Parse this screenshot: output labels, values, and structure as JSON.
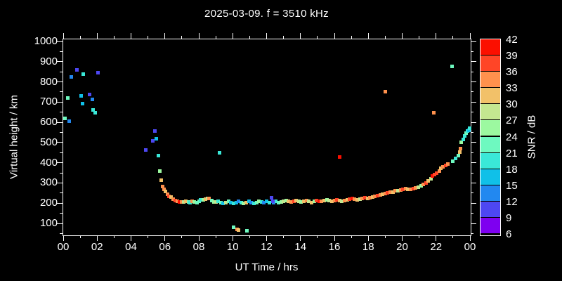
{
  "title": "2025-03-09. f = 3510 kHz",
  "axes": {
    "x": {
      "label": "UT Time / hrs",
      "tick_labels": [
        "00",
        "02",
        "04",
        "06",
        "08",
        "10",
        "12",
        "14",
        "16",
        "18",
        "20",
        "22",
        "00"
      ],
      "range": [
        0,
        24
      ],
      "minor_step_hours": 1
    },
    "y": {
      "label": "Virtual height / km",
      "tick_values": [
        100,
        200,
        300,
        400,
        500,
        600,
        700,
        800,
        900,
        1000
      ],
      "minor_step_km": 50,
      "range": [
        100,
        1000
      ]
    }
  },
  "colorbar": {
    "label": "SNR / dB",
    "tick_values": [
      6,
      9,
      12,
      15,
      18,
      21,
      24,
      27,
      30,
      33,
      36,
      39,
      42
    ],
    "min": 6,
    "max": 42,
    "step": 3,
    "colors": [
      "#7e00f0",
      "#4d47f2",
      "#2288f0",
      "#10c0e8",
      "#3ae8d8",
      "#6ef9c0",
      "#9cf9a0",
      "#c4e790",
      "#f2c169",
      "#ff914d",
      "#ff4527",
      "#fb0f00"
    ]
  },
  "background_color": "#000000",
  "text_color": "#ffffff",
  "chart_data": {
    "type": "scatter",
    "title": "2025-03-09. f = 3510 kHz",
    "xlabel": "UT Time / hrs",
    "ylabel": "Virtual height / km",
    "color_label": "SNR / dB",
    "xlim": [
      0,
      24
    ],
    "ylim": [
      100,
      1000
    ],
    "grid": false,
    "legend": "colorbar-right",
    "point_format": "[ut_hours, virtual_height_km, snr_db]",
    "points": [
      [
        0.12,
        621,
        22
      ],
      [
        0.29,
        722,
        22
      ],
      [
        0.37,
        607,
        13
      ],
      [
        0.46,
        826,
        13
      ],
      [
        0.79,
        858,
        10
      ],
      [
        1.04,
        732,
        16
      ],
      [
        1.12,
        694,
        16
      ],
      [
        1.17,
        837,
        19
      ],
      [
        1.54,
        739,
        10
      ],
      [
        1.7,
        715,
        13
      ],
      [
        1.78,
        660,
        19
      ],
      [
        1.87,
        649,
        19
      ],
      [
        2.04,
        844,
        10
      ],
      [
        4.85,
        463,
        10
      ],
      [
        5.28,
        508,
        10
      ],
      [
        5.42,
        558,
        10
      ],
      [
        5.5,
        518,
        16
      ],
      [
        5.62,
        437,
        19
      ],
      [
        5.7,
        358,
        25
      ],
      [
        5.78,
        312,
        31
      ],
      [
        5.85,
        281,
        34
      ],
      [
        5.95,
        269,
        34
      ],
      [
        6.05,
        257,
        31
      ],
      [
        6.15,
        243,
        34
      ],
      [
        6.25,
        235,
        37
      ],
      [
        6.38,
        230,
        31
      ],
      [
        6.5,
        221,
        34
      ],
      [
        6.62,
        214,
        37
      ],
      [
        6.75,
        209,
        34
      ],
      [
        6.88,
        207,
        40
      ],
      [
        7.0,
        205,
        34
      ],
      [
        7.12,
        207,
        28
      ],
      [
        7.25,
        209,
        31
      ],
      [
        7.38,
        206,
        22
      ],
      [
        7.5,
        204,
        19
      ],
      [
        7.62,
        210,
        34
      ],
      [
        7.75,
        207,
        25
      ],
      [
        7.88,
        204,
        22
      ],
      [
        8.0,
        211,
        22
      ],
      [
        8.12,
        215,
        19
      ],
      [
        8.25,
        218,
        25
      ],
      [
        8.38,
        221,
        31
      ],
      [
        8.5,
        224,
        28
      ],
      [
        8.62,
        222,
        34
      ],
      [
        8.75,
        214,
        22
      ],
      [
        8.88,
        207,
        25
      ],
      [
        9.0,
        205,
        28
      ],
      [
        9.15,
        210,
        19
      ],
      [
        9.3,
        204,
        22
      ],
      [
        9.45,
        199,
        16
      ],
      [
        9.6,
        204,
        28
      ],
      [
        9.75,
        209,
        22
      ],
      [
        9.9,
        204,
        16
      ],
      [
        10.05,
        199,
        19
      ],
      [
        10.2,
        204,
        16
      ],
      [
        10.35,
        209,
        13
      ],
      [
        10.5,
        204,
        19
      ],
      [
        10.65,
        199,
        25
      ],
      [
        10.8,
        204,
        31
      ],
      [
        10.95,
        209,
        16
      ],
      [
        11.1,
        204,
        13
      ],
      [
        11.25,
        199,
        19
      ],
      [
        11.4,
        204,
        22
      ],
      [
        11.55,
        209,
        25
      ],
      [
        11.7,
        207,
        19
      ],
      [
        11.85,
        204,
        13
      ],
      [
        12.0,
        209,
        16
      ],
      [
        12.15,
        204,
        19
      ],
      [
        12.4,
        204,
        13
      ],
      [
        12.55,
        209,
        19
      ],
      [
        12.7,
        204,
        22
      ],
      [
        12.85,
        207,
        25
      ],
      [
        13.0,
        211,
        28
      ],
      [
        13.15,
        214,
        25
      ],
      [
        13.3,
        209,
        31
      ],
      [
        13.45,
        207,
        34
      ],
      [
        13.6,
        211,
        37
      ],
      [
        13.75,
        214,
        31
      ],
      [
        13.9,
        209,
        28
      ],
      [
        14.05,
        207,
        25
      ],
      [
        14.2,
        211,
        31
      ],
      [
        14.35,
        214,
        34
      ],
      [
        14.5,
        209,
        28
      ],
      [
        14.65,
        204,
        31
      ],
      [
        14.8,
        209,
        25
      ],
      [
        14.95,
        214,
        37
      ],
      [
        15.1,
        211,
        40
      ],
      [
        15.25,
        209,
        34
      ],
      [
        15.4,
        214,
        31
      ],
      [
        15.55,
        217,
        25
      ],
      [
        15.7,
        214,
        28
      ],
      [
        15.85,
        211,
        31
      ],
      [
        16.0,
        214,
        34
      ],
      [
        16.15,
        217,
        37
      ],
      [
        16.3,
        214,
        31
      ],
      [
        16.45,
        211,
        28
      ],
      [
        16.6,
        214,
        34
      ],
      [
        16.75,
        217,
        31
      ],
      [
        16.9,
        221,
        37
      ],
      [
        17.05,
        224,
        40
      ],
      [
        17.2,
        221,
        34
      ],
      [
        17.35,
        217,
        31
      ],
      [
        17.5,
        221,
        28
      ],
      [
        17.65,
        224,
        34
      ],
      [
        17.8,
        227,
        37
      ],
      [
        17.95,
        224,
        31
      ],
      [
        18.1,
        228,
        34
      ],
      [
        18.25,
        231,
        31
      ],
      [
        18.4,
        234,
        34
      ],
      [
        18.55,
        238,
        37
      ],
      [
        18.7,
        240,
        34
      ],
      [
        18.85,
        243,
        31
      ],
      [
        19.0,
        246,
        34
      ],
      [
        19.15,
        250,
        37
      ],
      [
        19.3,
        253,
        34
      ],
      [
        19.45,
        256,
        31
      ],
      [
        19.6,
        260,
        34
      ],
      [
        19.75,
        263,
        28
      ],
      [
        19.9,
        266,
        34
      ],
      [
        20.05,
        270,
        37
      ],
      [
        20.2,
        273,
        34
      ],
      [
        20.35,
        270,
        31
      ],
      [
        20.5,
        268,
        34
      ],
      [
        20.65,
        272,
        37
      ],
      [
        20.8,
        276,
        34
      ],
      [
        20.95,
        280,
        28
      ],
      [
        21.1,
        285,
        25
      ],
      [
        21.25,
        292,
        34
      ],
      [
        21.4,
        300,
        37
      ],
      [
        21.55,
        310,
        31
      ],
      [
        21.7,
        322,
        28
      ],
      [
        21.8,
        333,
        40
      ],
      [
        21.92,
        341,
        37
      ],
      [
        22.05,
        348,
        37
      ],
      [
        22.18,
        360,
        34
      ],
      [
        22.3,
        372,
        31
      ],
      [
        22.42,
        381,
        34
      ],
      [
        22.55,
        388,
        37
      ],
      [
        22.68,
        393,
        34
      ],
      [
        23.0,
        406,
        22
      ],
      [
        23.15,
        420,
        19
      ],
      [
        23.3,
        434,
        22
      ],
      [
        23.38,
        452,
        31
      ],
      [
        23.42,
        469,
        34
      ],
      [
        23.5,
        500,
        25
      ],
      [
        23.6,
        515,
        19
      ],
      [
        23.7,
        534,
        19
      ],
      [
        23.78,
        545,
        22
      ],
      [
        23.85,
        556,
        19
      ],
      [
        23.92,
        562,
        16
      ],
      [
        23.97,
        571,
        19
      ],
      [
        9.23,
        448,
        19
      ],
      [
        12.27,
        228,
        10
      ],
      [
        12.36,
        211,
        10
      ],
      [
        16.33,
        427,
        41
      ],
      [
        19.0,
        753,
        34
      ],
      [
        21.87,
        649,
        34
      ],
      [
        22.95,
        875,
        22
      ],
      [
        10.06,
        82,
        22
      ],
      [
        10.25,
        70,
        34
      ],
      [
        10.33,
        66,
        31
      ],
      [
        10.82,
        63,
        22
      ]
    ]
  }
}
